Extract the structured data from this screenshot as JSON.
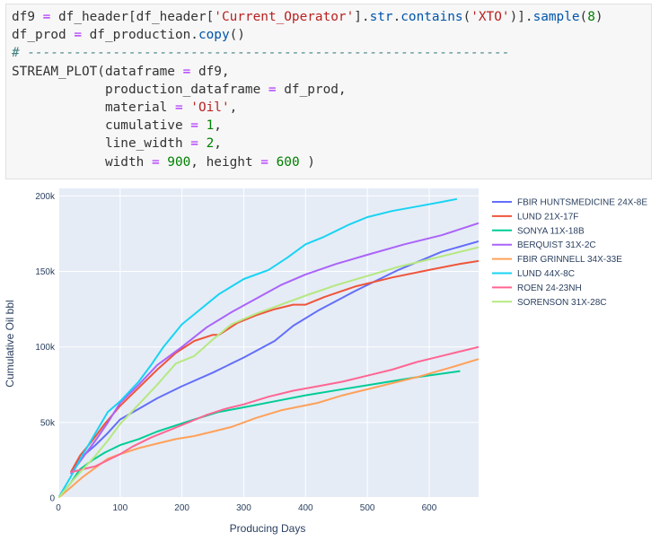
{
  "code": {
    "lines": [
      [
        {
          "t": "df9",
          "k": "var"
        },
        {
          "t": " ",
          "k": "var"
        },
        {
          "t": "=",
          "k": "op"
        },
        {
          "t": " df_header[df_header[",
          "k": "var"
        },
        {
          "t": "'Current_Operator'",
          "k": "str"
        },
        {
          "t": "].",
          "k": "var"
        },
        {
          "t": "str",
          "k": "fn"
        },
        {
          "t": ".",
          "k": "var"
        },
        {
          "t": "contains",
          "k": "fn"
        },
        {
          "t": "(",
          "k": "var"
        },
        {
          "t": "'XTO'",
          "k": "str"
        },
        {
          "t": ")].",
          "k": "var"
        },
        {
          "t": "sample",
          "k": "fn"
        },
        {
          "t": "(",
          "k": "var"
        },
        {
          "t": "8",
          "k": "num"
        },
        {
          "t": ")",
          "k": "var"
        }
      ],
      [
        {
          "t": "df_prod ",
          "k": "var"
        },
        {
          "t": "=",
          "k": "op"
        },
        {
          "t": " df_production.",
          "k": "var"
        },
        {
          "t": "copy",
          "k": "fn"
        },
        {
          "t": "()",
          "k": "var"
        }
      ],
      [
        {
          "t": "# --------------------------------------------------------------",
          "k": "comment"
        }
      ],
      [
        {
          "t": "STREAM_PLOT(dataframe ",
          "k": "var"
        },
        {
          "t": "=",
          "k": "op"
        },
        {
          "t": " df9,",
          "k": "var"
        }
      ],
      [
        {
          "t": "            production_dataframe ",
          "k": "var"
        },
        {
          "t": "=",
          "k": "op"
        },
        {
          "t": " df_prod,",
          "k": "var"
        }
      ],
      [
        {
          "t": "            material ",
          "k": "var"
        },
        {
          "t": "=",
          "k": "op"
        },
        {
          "t": " ",
          "k": "var"
        },
        {
          "t": "'Oil'",
          "k": "str"
        },
        {
          "t": ",",
          "k": "var"
        }
      ],
      [
        {
          "t": "            cumulative ",
          "k": "var"
        },
        {
          "t": "=",
          "k": "op"
        },
        {
          "t": " ",
          "k": "var"
        },
        {
          "t": "1",
          "k": "num"
        },
        {
          "t": ",",
          "k": "var"
        }
      ],
      [
        {
          "t": "            line_width ",
          "k": "var"
        },
        {
          "t": "=",
          "k": "op"
        },
        {
          "t": " ",
          "k": "var"
        },
        {
          "t": "2",
          "k": "num"
        },
        {
          "t": ",",
          "k": "var"
        }
      ],
      [
        {
          "t": "            width ",
          "k": "var"
        },
        {
          "t": "=",
          "k": "op"
        },
        {
          "t": " ",
          "k": "var"
        },
        {
          "t": "900",
          "k": "num"
        },
        {
          "t": ", height ",
          "k": "var"
        },
        {
          "t": "=",
          "k": "op"
        },
        {
          "t": " ",
          "k": "var"
        },
        {
          "t": "600",
          "k": "num"
        },
        {
          "t": " )",
          "k": "var"
        }
      ]
    ]
  },
  "chart_data": {
    "type": "line",
    "title": "",
    "xlabel": "Producing Days",
    "ylabel": "Cumulative Oil bbl",
    "xlim": [
      0,
      680
    ],
    "ylim": [
      0,
      205000
    ],
    "xticks": [
      0,
      100,
      200,
      300,
      400,
      500,
      600
    ],
    "xtick_labels": [
      "0",
      "100",
      "200",
      "300",
      "400",
      "500",
      "600"
    ],
    "yticks": [
      0,
      50000,
      100000,
      150000,
      200000
    ],
    "ytick_labels": [
      "0",
      "50k",
      "100k",
      "150k",
      "200k"
    ],
    "grid": true,
    "legend_position": "right",
    "background": "#e5ecf6",
    "series": [
      {
        "name": "FBIR HUNTSMEDICINE 24X-8E",
        "color": "#636efa",
        "x": [
          20,
          35,
          60,
          80,
          100,
          130,
          160,
          200,
          250,
          300,
          350,
          380,
          420,
          480,
          550,
          620,
          680
        ],
        "y": [
          16000,
          26000,
          35000,
          43000,
          52000,
          59000,
          66000,
          74000,
          83000,
          93000,
          104000,
          114000,
          124000,
          137000,
          151000,
          163000,
          170000
        ]
      },
      {
        "name": "LUND 21X-17F",
        "color": "#ef553b",
        "x": [
          20,
          35,
          55,
          75,
          100,
          130,
          160,
          190,
          220,
          250,
          260,
          290,
          320,
          350,
          380,
          400,
          430,
          480,
          540,
          600,
          650,
          680
        ],
        "y": [
          17000,
          28000,
          38000,
          49000,
          61000,
          73000,
          85000,
          96000,
          104000,
          108000,
          108000,
          116000,
          121000,
          125000,
          128000,
          128000,
          133000,
          140000,
          146000,
          151000,
          155000,
          157000
        ]
      },
      {
        "name": "SONYA 11X-18B",
        "color": "#00cc96",
        "x": [
          0,
          20,
          35,
          55,
          75,
          100,
          130,
          160,
          190,
          220,
          260,
          300,
          350,
          400,
          460,
          520,
          580,
          650
        ],
        "y": [
          0,
          10000,
          19000,
          25000,
          30000,
          35000,
          39000,
          44000,
          48000,
          52000,
          57000,
          60000,
          64000,
          68000,
          72000,
          76000,
          80000,
          84000
        ]
      },
      {
        "name": "BERQUIST 31X-2C",
        "color": "#ab63fa",
        "x": [
          20,
          40,
          60,
          80,
          100,
          130,
          160,
          200,
          240,
          280,
          320,
          360,
          400,
          450,
          500,
          560,
          620,
          680
        ],
        "y": [
          16000,
          27000,
          38000,
          50000,
          63000,
          75000,
          88000,
          100000,
          113000,
          123000,
          132000,
          141000,
          148000,
          155000,
          161000,
          168000,
          174000,
          182000
        ]
      },
      {
        "name": "FBIR GRINNELL 34X-33E",
        "color": "#ffa15a",
        "x": [
          0,
          20,
          40,
          60,
          80,
          100,
          130,
          160,
          190,
          220,
          250,
          280,
          320,
          360,
          420,
          460,
          520,
          580,
          640,
          680
        ],
        "y": [
          0,
          7000,
          14000,
          20000,
          26000,
          29000,
          33000,
          36000,
          39000,
          41000,
          44000,
          47000,
          53000,
          58000,
          63000,
          68000,
          74000,
          80000,
          87000,
          92000
        ]
      },
      {
        "name": "LUND 44X-8C",
        "color": "#19d3f3",
        "x": [
          0,
          20,
          40,
          60,
          80,
          100,
          130,
          150,
          170,
          200,
          230,
          260,
          300,
          340,
          370,
          400,
          430,
          470,
          500,
          540,
          580,
          620,
          645
        ],
        "y": [
          0,
          14000,
          29000,
          43000,
          57000,
          64000,
          77000,
          88000,
          100000,
          115000,
          125000,
          135000,
          145000,
          151000,
          159000,
          168000,
          173000,
          181000,
          186000,
          190000,
          193000,
          196000,
          198000
        ]
      },
      {
        "name": "ROEN 24-23NH",
        "color": "#ff6692",
        "x": [
          20,
          40,
          60,
          80,
          100,
          120,
          150,
          180,
          210,
          240,
          270,
          300,
          340,
          380,
          420,
          460,
          500,
          540,
          580,
          620,
          660,
          680
        ],
        "y": [
          17000,
          19000,
          21000,
          25000,
          29000,
          34000,
          40000,
          45000,
          50000,
          55000,
          59000,
          62000,
          67000,
          71000,
          74000,
          77000,
          81000,
          85000,
          90000,
          94000,
          98000,
          100000
        ]
      },
      {
        "name": "SORENSON 31X-28C",
        "color": "#b6e880",
        "x": [
          0,
          20,
          40,
          60,
          80,
          100,
          130,
          160,
          190,
          220,
          250,
          280,
          320,
          360,
          400,
          450,
          500,
          550,
          600,
          650,
          680
        ],
        "y": [
          0,
          10000,
          19000,
          28000,
          38000,
          49000,
          62000,
          75000,
          89000,
          94000,
          105000,
          115000,
          122000,
          128000,
          134000,
          141000,
          147000,
          153000,
          158000,
          163000,
          166000
        ]
      }
    ]
  }
}
